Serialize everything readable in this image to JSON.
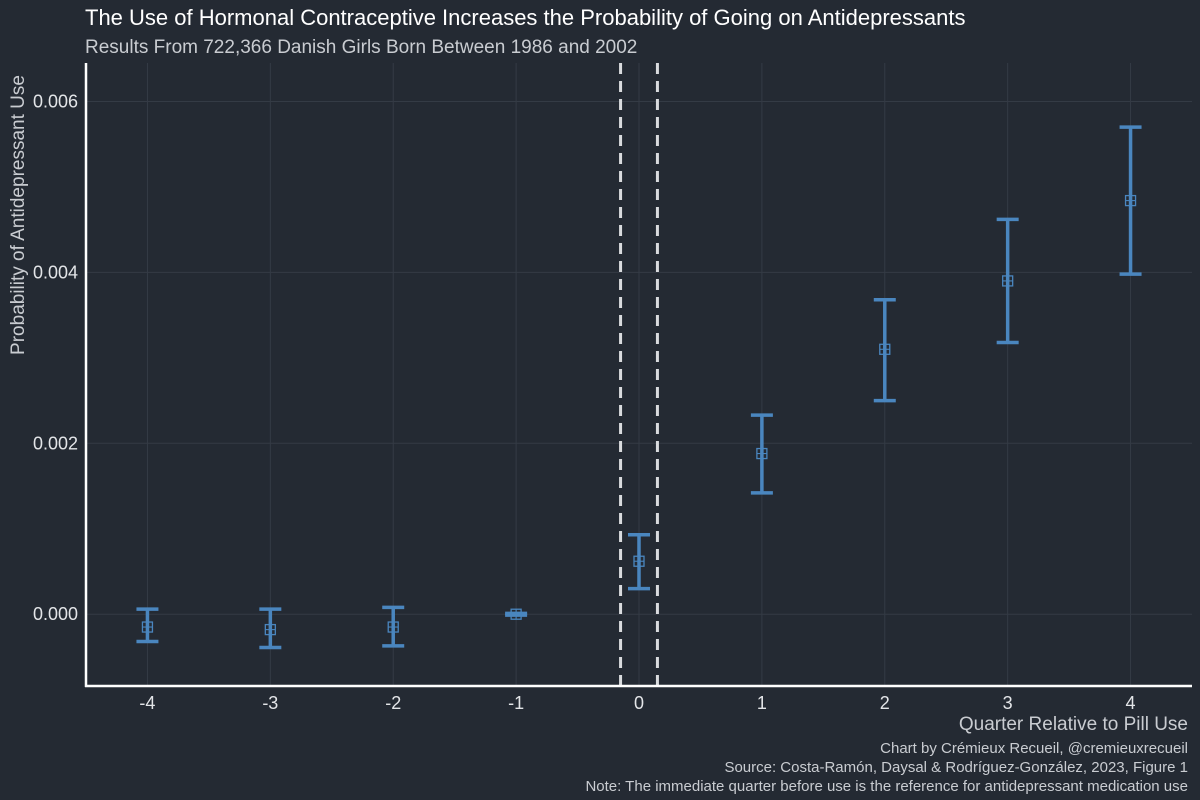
{
  "chart_data": {
    "type": "scatter",
    "title": "The Use of Hormonal Contraceptive Increases the Probability of Going on Antidepressants",
    "subtitle": "Results From 722,366 Danish Girls Born Between 1986 and 2002",
    "xlabel": "Quarter Relative to Pill Use",
    "ylabel": "Probability of Antidepressant Use",
    "x_ticks": [
      "-4",
      "-3",
      "-2",
      "-1",
      "0",
      "1",
      "2",
      "3",
      "4"
    ],
    "y_ticks": [
      "0.000",
      "0.002",
      "0.004",
      "0.006"
    ],
    "y_tick_values": [
      0,
      0.002,
      0.004,
      0.006
    ],
    "xlim": [
      -4.5,
      4.5
    ],
    "ylim": [
      -0.00084,
      0.00645
    ],
    "grid": true,
    "reference_lines_x": [
      -0.15,
      0.15
    ],
    "points": [
      {
        "x": -4,
        "estimate": -0.00015,
        "lower": -0.00032,
        "upper": 6e-05
      },
      {
        "x": -3,
        "estimate": -0.00018,
        "lower": -0.00039,
        "upper": 6e-05
      },
      {
        "x": -2,
        "estimate": -0.00015,
        "lower": -0.00037,
        "upper": 8e-05
      },
      {
        "x": -1,
        "estimate": 0.0,
        "lower": -1e-05,
        "upper": 1e-05
      },
      {
        "x": 0,
        "estimate": 0.00062,
        "lower": 0.0003,
        "upper": 0.00093
      },
      {
        "x": 1,
        "estimate": 0.00188,
        "lower": 0.00142,
        "upper": 0.00233
      },
      {
        "x": 2,
        "estimate": 0.0031,
        "lower": 0.0025,
        "upper": 0.00368
      },
      {
        "x": 3,
        "estimate": 0.0039,
        "lower": 0.00318,
        "upper": 0.00462
      },
      {
        "x": 4,
        "estimate": 0.00484,
        "lower": 0.00398,
        "upper": 0.0057
      }
    ],
    "series_color": "#4a86bf"
  },
  "captions": [
    "Chart by Crémieux Recueil, @cremieuxrecueil",
    "Source: Costa-Ramón, Daysal & Rodríguez-González, 2023, Figure 1",
    "Note: The immediate quarter before use is the reference for antidepressant medication use"
  ],
  "colors": {
    "background": "#242a33",
    "grid": "#343b45",
    "axis": "#ffffff",
    "reference_line": "#d9dbde",
    "text": "#c9ccd1"
  }
}
